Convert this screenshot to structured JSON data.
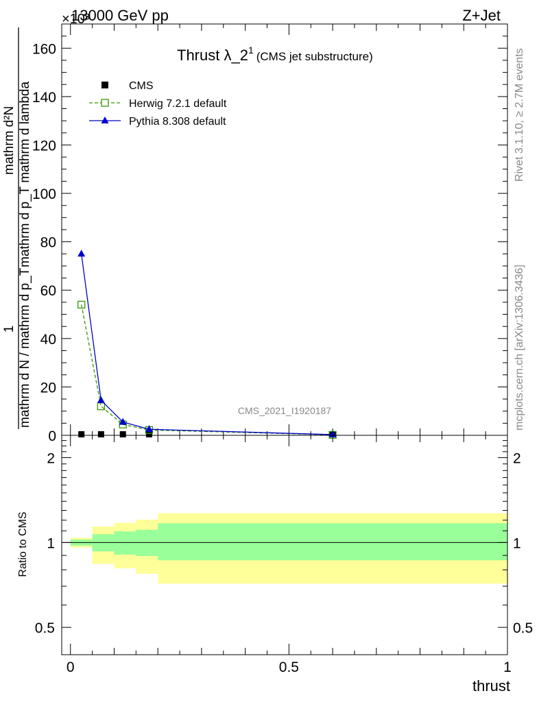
{
  "header": {
    "left": "13000 GeV pp",
    "right": "Z+Jet",
    "exponent": "×10³"
  },
  "side_labels": {
    "rivet": "Rivet 3.1.10, ≥ 2.7M events",
    "mcplots": "mcplots.cern.ch [arXiv:1306.3436]"
  },
  "watermark": "CMS_2021_I1920187",
  "chart_data": [
    {
      "type": "line",
      "title": "Thrust λ_2",
      "title_sup": "1",
      "subtitle": "(CMS jet substructure)",
      "ylabel_numerator": "mathrm d²N",
      "ylabel_denominator": "mathrm d p_T mathrm d lambda",
      "ylabel_prefactor_num": "1",
      "ylabel_prefactor_den": "mathrm d N / mathrm d p_T",
      "ylim": [
        0,
        170
      ],
      "yticks": [
        0,
        20,
        40,
        60,
        80,
        100,
        120,
        140,
        160
      ],
      "xlim": [
        -0.02,
        1.0
      ],
      "series": [
        {
          "name": "CMS",
          "color": "#000000",
          "marker": "square-filled",
          "x": [
            0.025,
            0.07,
            0.12,
            0.18,
            0.6
          ],
          "y": [
            0.0,
            0.0,
            0.0,
            0.0,
            0.0
          ]
        },
        {
          "name": "Herwig 7.2.1 default",
          "color": "#339900",
          "marker": "square-open",
          "dashed": true,
          "x": [
            0.025,
            0.07,
            0.12,
            0.18,
            0.6
          ],
          "y": [
            54.0,
            12.0,
            4.5,
            2.2,
            0.2
          ]
        },
        {
          "name": "Pythia 8.308 default",
          "color": "#0000cc",
          "marker": "triangle-filled",
          "dashed": false,
          "x": [
            0.025,
            0.07,
            0.12,
            0.18,
            0.6
          ],
          "y": [
            75.0,
            14.5,
            5.5,
            2.5,
            0.3
          ]
        }
      ]
    },
    {
      "type": "area",
      "ylabel": "Ratio to CMS",
      "xlabel": "thrust",
      "ylog": true,
      "ylim": [
        0.4,
        2.4
      ],
      "yticks": [
        0.5,
        1,
        2
      ],
      "xticks": [
        0,
        0.5,
        1
      ],
      "xlim": [
        -0.02,
        1.0
      ],
      "bins": [
        0.0,
        0.05,
        0.1,
        0.15,
        0.2,
        1.0
      ],
      "band_inner": {
        "color": "#99ff99",
        "lo": [
          0.975,
          0.93,
          0.905,
          0.895,
          0.865
        ],
        "hi": [
          1.025,
          1.07,
          1.095,
          1.11,
          1.17
        ]
      },
      "band_outer": {
        "color": "#ffff99",
        "lo": [
          0.96,
          0.84,
          0.81,
          0.775,
          0.715
        ],
        "hi": [
          1.04,
          1.14,
          1.175,
          1.205,
          1.27
        ]
      },
      "reference": 1
    }
  ]
}
